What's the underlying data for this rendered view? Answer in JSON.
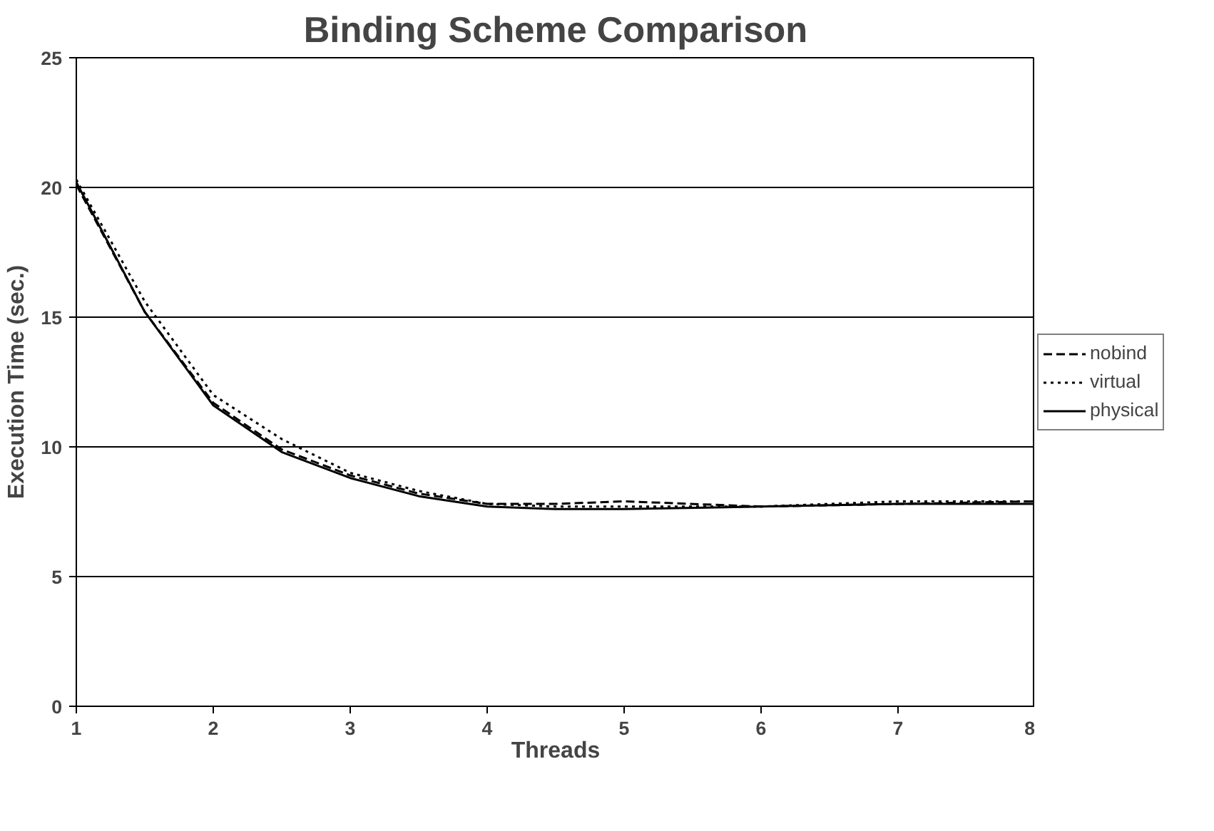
{
  "chart_data": {
    "type": "line",
    "title": "Binding Scheme Comparison",
    "xlabel": "Threads",
    "ylabel": "Execution Time (sec.)",
    "x": [
      1,
      1.5,
      2,
      2.5,
      3,
      3.5,
      4,
      4.5,
      5,
      6,
      7,
      8
    ],
    "series": [
      {
        "name": "nobind",
        "color": "#000000",
        "line_style": "dashed",
        "values": [
          20.1,
          15.2,
          11.7,
          9.9,
          8.9,
          8.2,
          7.8,
          7.8,
          7.9,
          7.7,
          7.8,
          7.9
        ]
      },
      {
        "name": "virtual",
        "color": "#000000",
        "line_style": "dotted",
        "values": [
          20.3,
          15.6,
          12.0,
          10.3,
          9.0,
          8.3,
          7.8,
          7.7,
          7.7,
          7.7,
          7.9,
          7.9
        ]
      },
      {
        "name": "physical",
        "color": "#000000",
        "line_style": "solid",
        "values": [
          20.2,
          15.2,
          11.6,
          9.8,
          8.8,
          8.1,
          7.7,
          7.6,
          7.6,
          7.7,
          7.8,
          7.8
        ]
      }
    ],
    "xlim": [
      1,
      8
    ],
    "xticks": [
      1,
      2,
      3,
      4,
      5,
      6,
      7,
      8
    ],
    "ylim": [
      0,
      25
    ],
    "yticks": [
      0,
      5,
      10,
      15,
      20,
      25
    ],
    "grid": "y",
    "legend": "right",
    "marker": "none"
  }
}
